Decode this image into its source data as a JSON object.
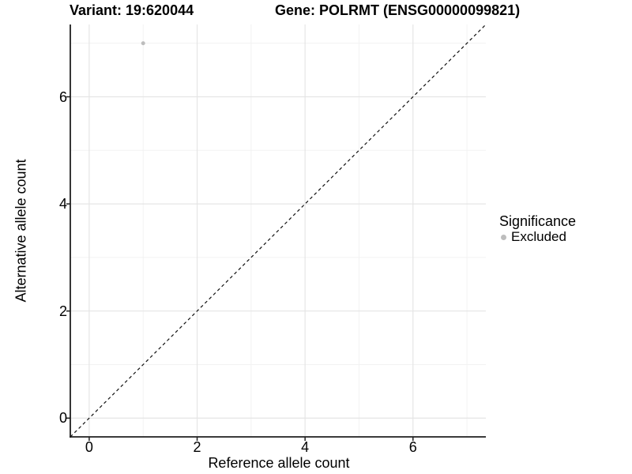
{
  "header": {
    "variant_title": "Variant: 19:620044",
    "gene_title": "Gene: POLRMT (ENSG00000099821)"
  },
  "colors": {
    "background": "#ffffff",
    "grid_major": "#e5e5e5",
    "grid_minor": "#f2f2f2",
    "axis": "#1f1f1f",
    "reference_line": "#111111",
    "point": "#bdbdbd",
    "text": "#000000"
  },
  "chart_data": {
    "type": "scatter",
    "title": "Variant: 19:620044   Gene: POLRMT (ENSG00000099821)",
    "xlabel": "Reference allele count",
    "ylabel": "Alternative allele count",
    "xlim": [
      -0.35,
      7.35
    ],
    "ylim": [
      -0.35,
      7.35
    ],
    "x_ticks": [
      0,
      2,
      4,
      6
    ],
    "y_ticks": [
      0,
      2,
      4,
      6
    ],
    "x_minor_ticks": [
      1,
      3,
      5,
      7
    ],
    "y_minor_ticks": [
      1,
      3,
      5,
      7
    ],
    "grid": "major and minor gridlines on white panel",
    "points": [
      {
        "x": 1,
        "y": 7,
        "significance": "Excluded"
      }
    ],
    "reference_line": {
      "kind": "identity y=x",
      "style": "dashed",
      "span": [
        -0.35,
        7.35
      ]
    },
    "legend": {
      "title": "Significance",
      "position": "right",
      "entries": [
        {
          "label": "Excluded",
          "color": "#bdbdbd"
        }
      ]
    }
  }
}
